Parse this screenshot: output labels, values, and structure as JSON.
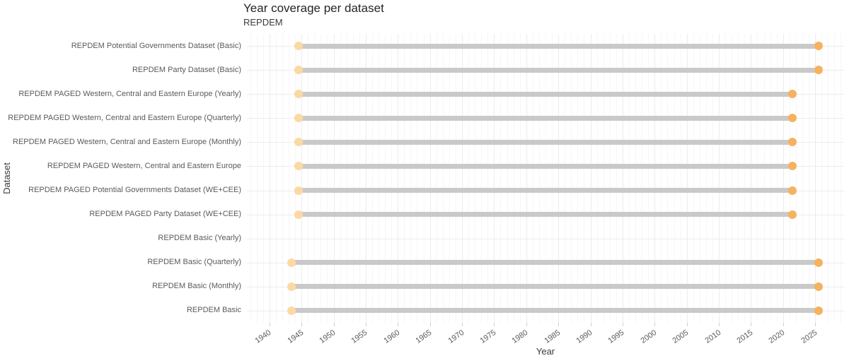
{
  "title": "Year coverage per dataset",
  "subtitle": "REPDEM",
  "xlabel": "Year",
  "ylabel": "Dataset",
  "colors": {
    "bar": "#c9c9c9",
    "start_dot": "#fcd8a2",
    "end_dot": "#f6b25e",
    "grid_minor": "#f6f6f6",
    "grid_major": "#ececec",
    "row_line": "#ececec",
    "tick_mark": "#cfcfcf",
    "label_text": "#5a5a5a"
  },
  "chart_data": {
    "type": "bar",
    "subtype": "horizontal-range-dumbbell",
    "title": "Year coverage per dataset",
    "subtitle": "REPDEM",
    "xlabel": "Year",
    "ylabel": "Dataset",
    "xlim": [
      1936.5,
      2029.5
    ],
    "x_ticks": [
      1940,
      1945,
      1950,
      1955,
      1960,
      1965,
      1970,
      1975,
      1980,
      1985,
      1990,
      1995,
      2000,
      2005,
      2010,
      2015,
      2020,
      2025
    ],
    "grid": true,
    "legend": "none",
    "rows": [
      {
        "label": "REPDEM Potential Governments Dataset (Basic)",
        "start": 1944.5,
        "end": 2025.5
      },
      {
        "label": "REPDEM Party Dataset (Basic)",
        "start": 1944.5,
        "end": 2025.5
      },
      {
        "label": "REPDEM PAGED Western, Central and Eastern Europe (Yearly)",
        "start": 1944.5,
        "end": 2021.5
      },
      {
        "label": "REPDEM PAGED Western, Central and Eastern Europe (Quarterly)",
        "start": 1944.5,
        "end": 2021.5
      },
      {
        "label": "REPDEM PAGED Western, Central and Eastern Europe (Monthly)",
        "start": 1944.5,
        "end": 2021.5
      },
      {
        "label": "REPDEM PAGED Western, Central and Eastern Europe",
        "start": 1944.5,
        "end": 2021.5
      },
      {
        "label": "REPDEM PAGED Potential Governments Dataset (WE+CEE)",
        "start": 1944.5,
        "end": 2021.5
      },
      {
        "label": "REPDEM PAGED Party Dataset (WE+CEE)",
        "start": 1944.5,
        "end": 2021.5
      },
      {
        "label": "REPDEM Basic (Yearly)",
        "start": null,
        "end": null
      },
      {
        "label": "REPDEM Basic (Quarterly)",
        "start": 1943.4,
        "end": 2025.5
      },
      {
        "label": "REPDEM Basic (Monthly)",
        "start": 1943.4,
        "end": 2025.5
      },
      {
        "label": "REPDEM Basic",
        "start": 1943.4,
        "end": 2025.5
      }
    ]
  }
}
